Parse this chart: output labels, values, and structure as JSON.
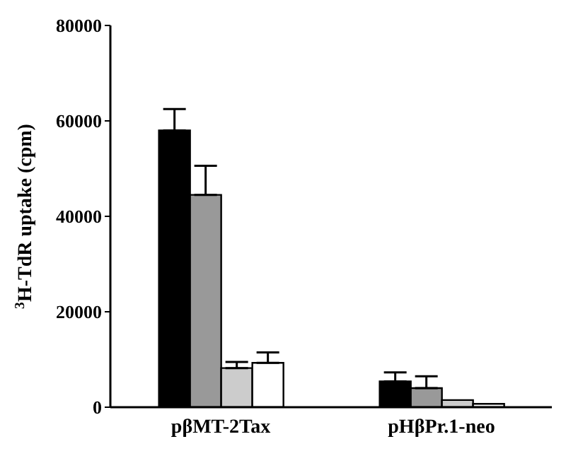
{
  "chart_data": {
    "type": "bar",
    "ylabel": "$^{3}$H-TdR uptake (cpm)",
    "categories": [
      "pβMT-2Tax",
      "pHβPr.1-neo"
    ],
    "series": [
      {
        "color": "#000000",
        "values": [
          58000,
          5400
        ],
        "errors": [
          [
            58000,
            62500
          ],
          [
            5400,
            7300
          ]
        ]
      },
      {
        "color": "#999999",
        "values": [
          44500,
          4000
        ],
        "errors": [
          [
            44500,
            50600
          ],
          [
            4000,
            6500
          ]
        ]
      },
      {
        "color": "#cccccc",
        "values": [
          8200,
          1500
        ],
        "errors": [
          [
            8200,
            9500
          ],
          null
        ]
      },
      {
        "color": "#ffffff",
        "values": [
          9300,
          700
        ],
        "errors": [
          [
            9300,
            11500
          ],
          null
        ]
      }
    ],
    "ylim": [
      0,
      80000
    ],
    "yticks": [
      0,
      20000,
      40000,
      60000,
      80000
    ],
    "grid": false,
    "legend": false
  }
}
